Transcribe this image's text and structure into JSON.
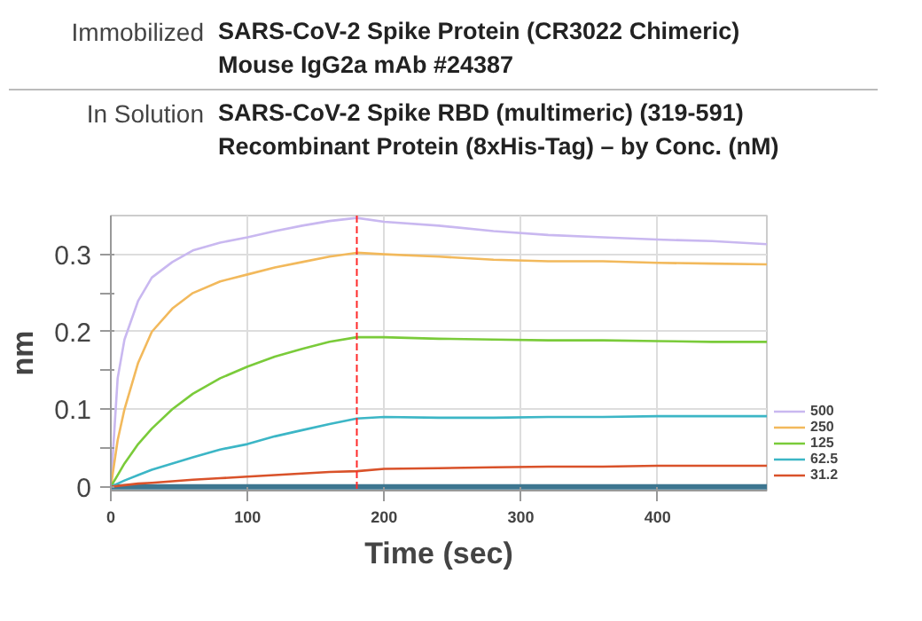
{
  "chart_data": {
    "type": "line",
    "title": "SARS-CoV-2 Spike Protein (CR3022 Chimeric) Mouse IgG2a mAb #24387",
    "subtitle": "SARS-CoV-2 Spike RBD (multimeric) (319-591) Recombinant Protein (8xHis-Tag) – by Conc. (nM)",
    "annotations": [
      "Immobilized",
      "In Solution"
    ],
    "xlabel": "Time (sec)",
    "ylabel": "nm",
    "x": [
      0,
      5,
      10,
      20,
      30,
      45,
      60,
      80,
      100,
      120,
      140,
      160,
      180,
      200,
      240,
      280,
      320,
      360,
      400,
      440,
      480
    ],
    "series": [
      {
        "color": "#3d7690",
        "values": [
          0,
          0,
          0,
          0,
          0,
          0,
          0,
          0,
          0,
          0,
          0,
          0,
          0,
          0,
          0,
          0,
          0,
          0,
          0,
          0,
          0
        ]
      },
      {
        "name": "500",
        "color": "#c9b8f0",
        "values": [
          0,
          0.14,
          0.19,
          0.24,
          0.27,
          0.29,
          0.305,
          0.315,
          0.322,
          0.33,
          0.337,
          0.343,
          0.347,
          0.342,
          0.337,
          0.33,
          0.325,
          0.322,
          0.319,
          0.317,
          0.313
        ]
      },
      {
        "name": "250",
        "color": "#f2b95c",
        "values": [
          0,
          0.06,
          0.1,
          0.16,
          0.2,
          0.23,
          0.25,
          0.265,
          0.274,
          0.283,
          0.29,
          0.297,
          0.302,
          0.3,
          0.297,
          0.293,
          0.291,
          0.291,
          0.289,
          0.288,
          0.287
        ]
      },
      {
        "name": "125",
        "color": "#7acb3a",
        "values": [
          0,
          0.015,
          0.03,
          0.055,
          0.075,
          0.1,
          0.12,
          0.14,
          0.155,
          0.168,
          0.178,
          0.187,
          0.193,
          0.193,
          0.191,
          0.19,
          0.189,
          0.189,
          0.188,
          0.187,
          0.187
        ]
      },
      {
        "name": "62.5",
        "color": "#3cb6c6",
        "values": [
          0,
          0.004,
          0.008,
          0.015,
          0.022,
          0.03,
          0.038,
          0.048,
          0.055,
          0.065,
          0.073,
          0.081,
          0.088,
          0.09,
          0.089,
          0.089,
          0.09,
          0.09,
          0.091,
          0.091,
          0.091
        ]
      },
      {
        "name": "31.2",
        "color": "#d9522a",
        "values": [
          0,
          0.001,
          0.002,
          0.004,
          0.005,
          0.007,
          0.009,
          0.011,
          0.013,
          0.015,
          0.017,
          0.019,
          0.02,
          0.023,
          0.024,
          0.025,
          0.026,
          0.026,
          0.027,
          0.027,
          0.027
        ]
      }
    ],
    "xlim": [
      0,
      480
    ],
    "ylim": [
      -0.005,
      0.35
    ],
    "xticks": [
      0,
      100,
      200,
      300,
      400
    ],
    "yticks": [
      0,
      {
        "value": 0.05,
        "label": null
      },
      0.1,
      {
        "value": 0.15,
        "label": null
      },
      0.2,
      {
        "value": 0.25,
        "label": null
      },
      0.3
    ],
    "ref_lines": [
      {
        "axis": "x",
        "value": 180,
        "color": "#ff2a2a",
        "line_style": "dashed"
      }
    ],
    "grid": true,
    "legend": "bottom right"
  }
}
